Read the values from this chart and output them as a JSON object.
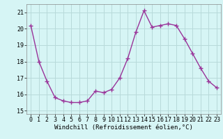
{
  "x": [
    0,
    1,
    2,
    3,
    4,
    5,
    6,
    7,
    8,
    9,
    10,
    11,
    12,
    13,
    14,
    15,
    16,
    17,
    18,
    19,
    20,
    21,
    22,
    23
  ],
  "y": [
    20.2,
    18.0,
    16.8,
    15.8,
    15.6,
    15.5,
    15.5,
    15.6,
    16.2,
    16.1,
    16.3,
    17.0,
    18.2,
    19.8,
    21.1,
    20.1,
    20.2,
    20.3,
    20.2,
    19.4,
    18.5,
    17.6,
    16.8,
    16.4
  ],
  "line_color": "#993399",
  "marker": "+",
  "markersize": 4,
  "linewidth": 1.0,
  "bg_color": "#d6f5f5",
  "grid_color": "#b8dada",
  "xlabel": "Windchill (Refroidissement éolien,°C)",
  "xlabel_fontsize": 6.5,
  "ylabel_ticks": [
    15,
    16,
    17,
    18,
    19,
    20,
    21
  ],
  "xlim": [
    -0.5,
    23.5
  ],
  "ylim": [
    14.8,
    21.5
  ],
  "tick_fontsize": 6
}
